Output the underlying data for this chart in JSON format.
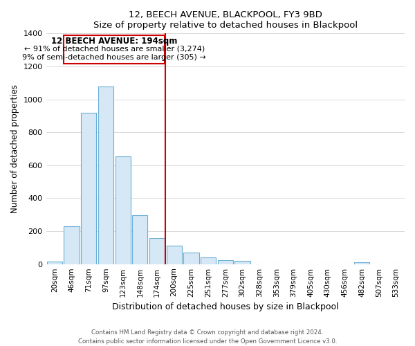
{
  "title": "12, BEECH AVENUE, BLACKPOOL, FY3 9BD",
  "subtitle": "Size of property relative to detached houses in Blackpool",
  "xlabel": "Distribution of detached houses by size in Blackpool",
  "ylabel": "Number of detached properties",
  "bar_labels": [
    "20sqm",
    "46sqm",
    "71sqm",
    "97sqm",
    "123sqm",
    "148sqm",
    "174sqm",
    "200sqm",
    "225sqm",
    "251sqm",
    "277sqm",
    "302sqm",
    "328sqm",
    "353sqm",
    "379sqm",
    "405sqm",
    "430sqm",
    "456sqm",
    "482sqm",
    "507sqm",
    "533sqm"
  ],
  "bar_heights": [
    15,
    230,
    920,
    1080,
    655,
    295,
    160,
    110,
    70,
    40,
    25,
    20,
    0,
    0,
    0,
    0,
    0,
    0,
    10,
    0,
    0
  ],
  "bar_color_fill": "#d6e8f5",
  "bar_color_edge": "#6aaed6",
  "vline_color": "#cc0000",
  "annotation_title": "12 BEECH AVENUE: 194sqm",
  "annotation_line1": "← 91% of detached houses are smaller (3,274)",
  "annotation_line2": "9% of semi-detached houses are larger (305) →",
  "annotation_box_color": "#ffffff",
  "annotation_box_edge": "#cc0000",
  "footer1": "Contains HM Land Registry data © Crown copyright and database right 2024.",
  "footer2": "Contains public sector information licensed under the Open Government Licence v3.0.",
  "ylim": [
    0,
    1400
  ],
  "yticks": [
    0,
    200,
    400,
    600,
    800,
    1000,
    1200,
    1400
  ],
  "figsize": [
    6.0,
    5.0
  ],
  "dpi": 100
}
